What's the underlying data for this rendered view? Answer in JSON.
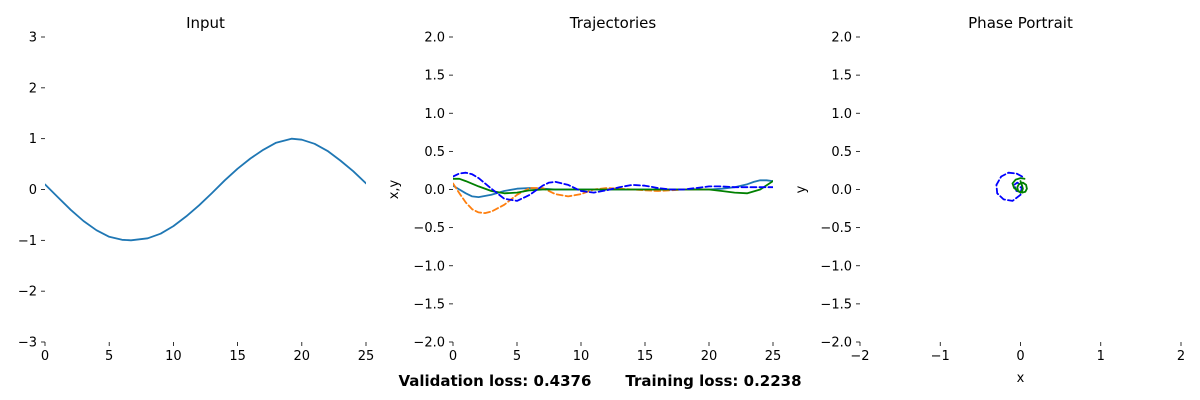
{
  "chart_data": [
    {
      "type": "line",
      "title": "Input",
      "xlabel": "",
      "ylabel": "",
      "xlim": [
        0,
        25
      ],
      "ylim": [
        -3,
        3
      ],
      "xticks": [
        0,
        5,
        10,
        15,
        20,
        25
      ],
      "yticks": [
        -3,
        -2,
        -1,
        0,
        1,
        2,
        3
      ],
      "grid": false,
      "series": [
        {
          "color": "#1f77b4",
          "dash": "solid",
          "x": [
            0,
            1,
            2,
            3,
            4,
            5,
            6,
            6.7,
            8,
            9,
            10,
            11,
            12,
            13,
            14,
            15,
            16,
            17,
            18,
            19.2,
            20,
            21,
            22,
            23,
            24,
            25
          ],
          "y": [
            0.1,
            -0.15,
            -0.4,
            -0.62,
            -0.8,
            -0.93,
            -0.99,
            -1.0,
            -0.96,
            -0.87,
            -0.72,
            -0.53,
            -0.31,
            -0.07,
            0.18,
            0.41,
            0.61,
            0.78,
            0.92,
            1.0,
            0.98,
            0.9,
            0.76,
            0.57,
            0.36,
            0.12
          ]
        }
      ]
    },
    {
      "type": "line",
      "title": "Trajectories",
      "xlabel": "",
      "ylabel": "x,y",
      "xlim": [
        0,
        25
      ],
      "ylim": [
        -2,
        2
      ],
      "xticks": [
        0,
        5,
        10,
        15,
        20,
        25
      ],
      "yticks": [
        -2.0,
        -1.5,
        -1.0,
        -0.5,
        0.0,
        0.5,
        1.0,
        1.5,
        2.0
      ],
      "grid": false,
      "series": [
        {
          "color": "#1f77b4",
          "dash": "solid",
          "x": [
            0,
            0.5,
            1,
            1.5,
            2,
            3,
            4,
            5,
            6,
            7,
            8,
            10,
            12,
            15,
            18,
            20,
            21,
            22,
            23,
            23.5,
            24,
            24.5,
            25
          ],
          "y": [
            0.05,
            0.0,
            -0.05,
            -0.09,
            -0.1,
            -0.07,
            -0.02,
            0.01,
            0.02,
            0.01,
            0.0,
            0.0,
            0.0,
            0.0,
            0.0,
            0.0,
            0.01,
            0.03,
            0.07,
            0.1,
            0.12,
            0.12,
            0.11
          ]
        },
        {
          "color": "#ff7f0e",
          "dash": "dashed",
          "x": [
            0,
            0.5,
            1,
            1.5,
            2,
            2.5,
            3,
            4,
            5,
            6,
            7,
            8,
            9,
            10,
            11,
            12,
            13,
            14,
            15,
            16,
            17,
            18,
            20
          ],
          "y": [
            0.08,
            -0.05,
            -0.17,
            -0.26,
            -0.3,
            -0.31,
            -0.29,
            -0.2,
            -0.07,
            0.02,
            0.02,
            -0.06,
            -0.09,
            -0.06,
            0.0,
            0.02,
            0.01,
            0.0,
            -0.01,
            -0.02,
            -0.01,
            0.0,
            0.0
          ]
        },
        {
          "color": "#008000",
          "dash": "solid",
          "x": [
            0,
            0.5,
            1,
            2,
            3,
            4,
            5,
            6,
            7,
            8,
            10,
            15,
            20,
            21,
            22,
            23,
            24,
            25
          ],
          "y": [
            0.14,
            0.14,
            0.11,
            0.04,
            -0.02,
            -0.05,
            -0.04,
            -0.01,
            0.0,
            0.0,
            0.0,
            0.0,
            0.0,
            -0.02,
            -0.04,
            -0.05,
            0.0,
            0.11
          ]
        },
        {
          "color": "#0000ff",
          "dash": "dashed",
          "x": [
            0,
            0.5,
            1,
            1.5,
            2,
            3,
            4,
            5,
            6,
            7,
            7.5,
            8,
            9,
            10,
            11,
            12,
            13,
            14,
            15,
            16,
            17,
            18,
            19,
            20,
            21,
            22,
            23,
            24,
            25
          ],
          "y": [
            0.17,
            0.21,
            0.22,
            0.2,
            0.15,
            0.01,
            -0.12,
            -0.15,
            -0.07,
            0.05,
            0.09,
            0.1,
            0.06,
            -0.02,
            -0.04,
            -0.01,
            0.03,
            0.06,
            0.05,
            0.02,
            0.0,
            0.0,
            0.02,
            0.04,
            0.04,
            0.03,
            0.03,
            0.03,
            0.03
          ]
        }
      ]
    },
    {
      "type": "line",
      "title": "Phase Portrait",
      "xlabel": "x",
      "ylabel": "y",
      "xlim": [
        -2,
        2
      ],
      "ylim": [
        -2,
        2
      ],
      "xticks": [
        -2,
        -1,
        0,
        1,
        2
      ],
      "yticks": [
        -2.0,
        -1.5,
        -1.0,
        -0.5,
        0.0,
        0.5,
        1.0,
        1.5,
        2.0
      ],
      "grid": false,
      "series": [
        {
          "color": "#0000ff",
          "dash": "dashed",
          "x": [
            0.02,
            -0.05,
            -0.15,
            -0.24,
            -0.3,
            -0.29,
            -0.21,
            -0.1,
            0.0,
            0.02,
            -0.04,
            -0.08,
            -0.05,
            0.0,
            0.02,
            0.01,
            0.0
          ],
          "y": [
            0.17,
            0.21,
            0.22,
            0.17,
            0.06,
            -0.05,
            -0.13,
            -0.15,
            -0.07,
            0.05,
            0.09,
            0.06,
            -0.02,
            -0.03,
            0.01,
            0.03,
            0.03
          ]
        },
        {
          "color": "#008000",
          "dash": "solid",
          "x": [
            0.05,
            0.0,
            -0.06,
            -0.1,
            -0.08,
            -0.03,
            0.02,
            0.06,
            0.08,
            0.07,
            0.03,
            -0.02,
            -0.04,
            -0.03,
            0.0,
            0.02,
            0.03,
            0.02,
            0.0
          ],
          "y": [
            0.14,
            0.15,
            0.13,
            0.08,
            0.02,
            -0.02,
            -0.04,
            -0.03,
            0.01,
            0.06,
            0.09,
            0.07,
            0.03,
            -0.02,
            -0.04,
            -0.02,
            0.01,
            0.05,
            0.11
          ]
        }
      ]
    }
  ],
  "footer": {
    "validation": "Validation loss: 0.4376",
    "training": "Training loss: 0.2238"
  }
}
